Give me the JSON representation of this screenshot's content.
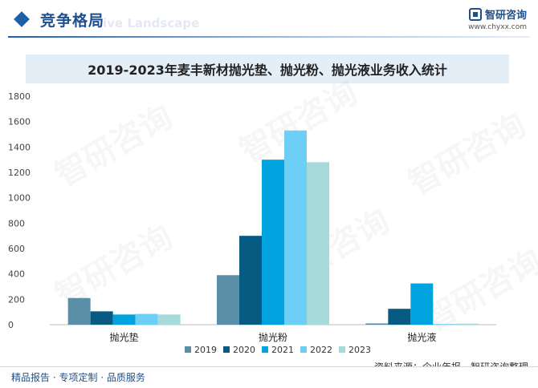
{
  "header": {
    "title": "竞争格局",
    "ghost_text": "ive Landscape",
    "brand_name": "智研咨询",
    "brand_url": "www.chyxx.com"
  },
  "watermark_text": "智研咨询",
  "source": "资料来源：企业年报，智研咨询整理",
  "footer": "精品报告 · 专项定制 · 品质服务",
  "colors": {
    "2019": "#5b8fa8",
    "2020": "#075a82",
    "2021": "#00a3dd",
    "2022": "#6dcff6",
    "2023": "#a6dbd9",
    "accent": "#1e5fa8"
  },
  "chart_data": {
    "type": "bar",
    "title": "2019-2023年麦丰新材抛光垫、抛光粉、抛光液业务收入统计",
    "categories": [
      "抛光垫",
      "抛光粉",
      "抛光液"
    ],
    "series": [
      {
        "name": "2019",
        "values": [
          210,
          390,
          10
        ]
      },
      {
        "name": "2020",
        "values": [
          105,
          700,
          125
        ]
      },
      {
        "name": "2021",
        "values": [
          80,
          1300,
          325
        ]
      },
      {
        "name": "2022",
        "values": [
          85,
          1530,
          5
        ]
      },
      {
        "name": "2023",
        "values": [
          80,
          1280,
          8
        ]
      }
    ],
    "ylim": [
      0,
      1800
    ],
    "yticks": [
      0,
      200,
      400,
      600,
      800,
      1000,
      1200,
      1400,
      1600,
      1800
    ],
    "legend_position": "bottom",
    "grid": false
  }
}
